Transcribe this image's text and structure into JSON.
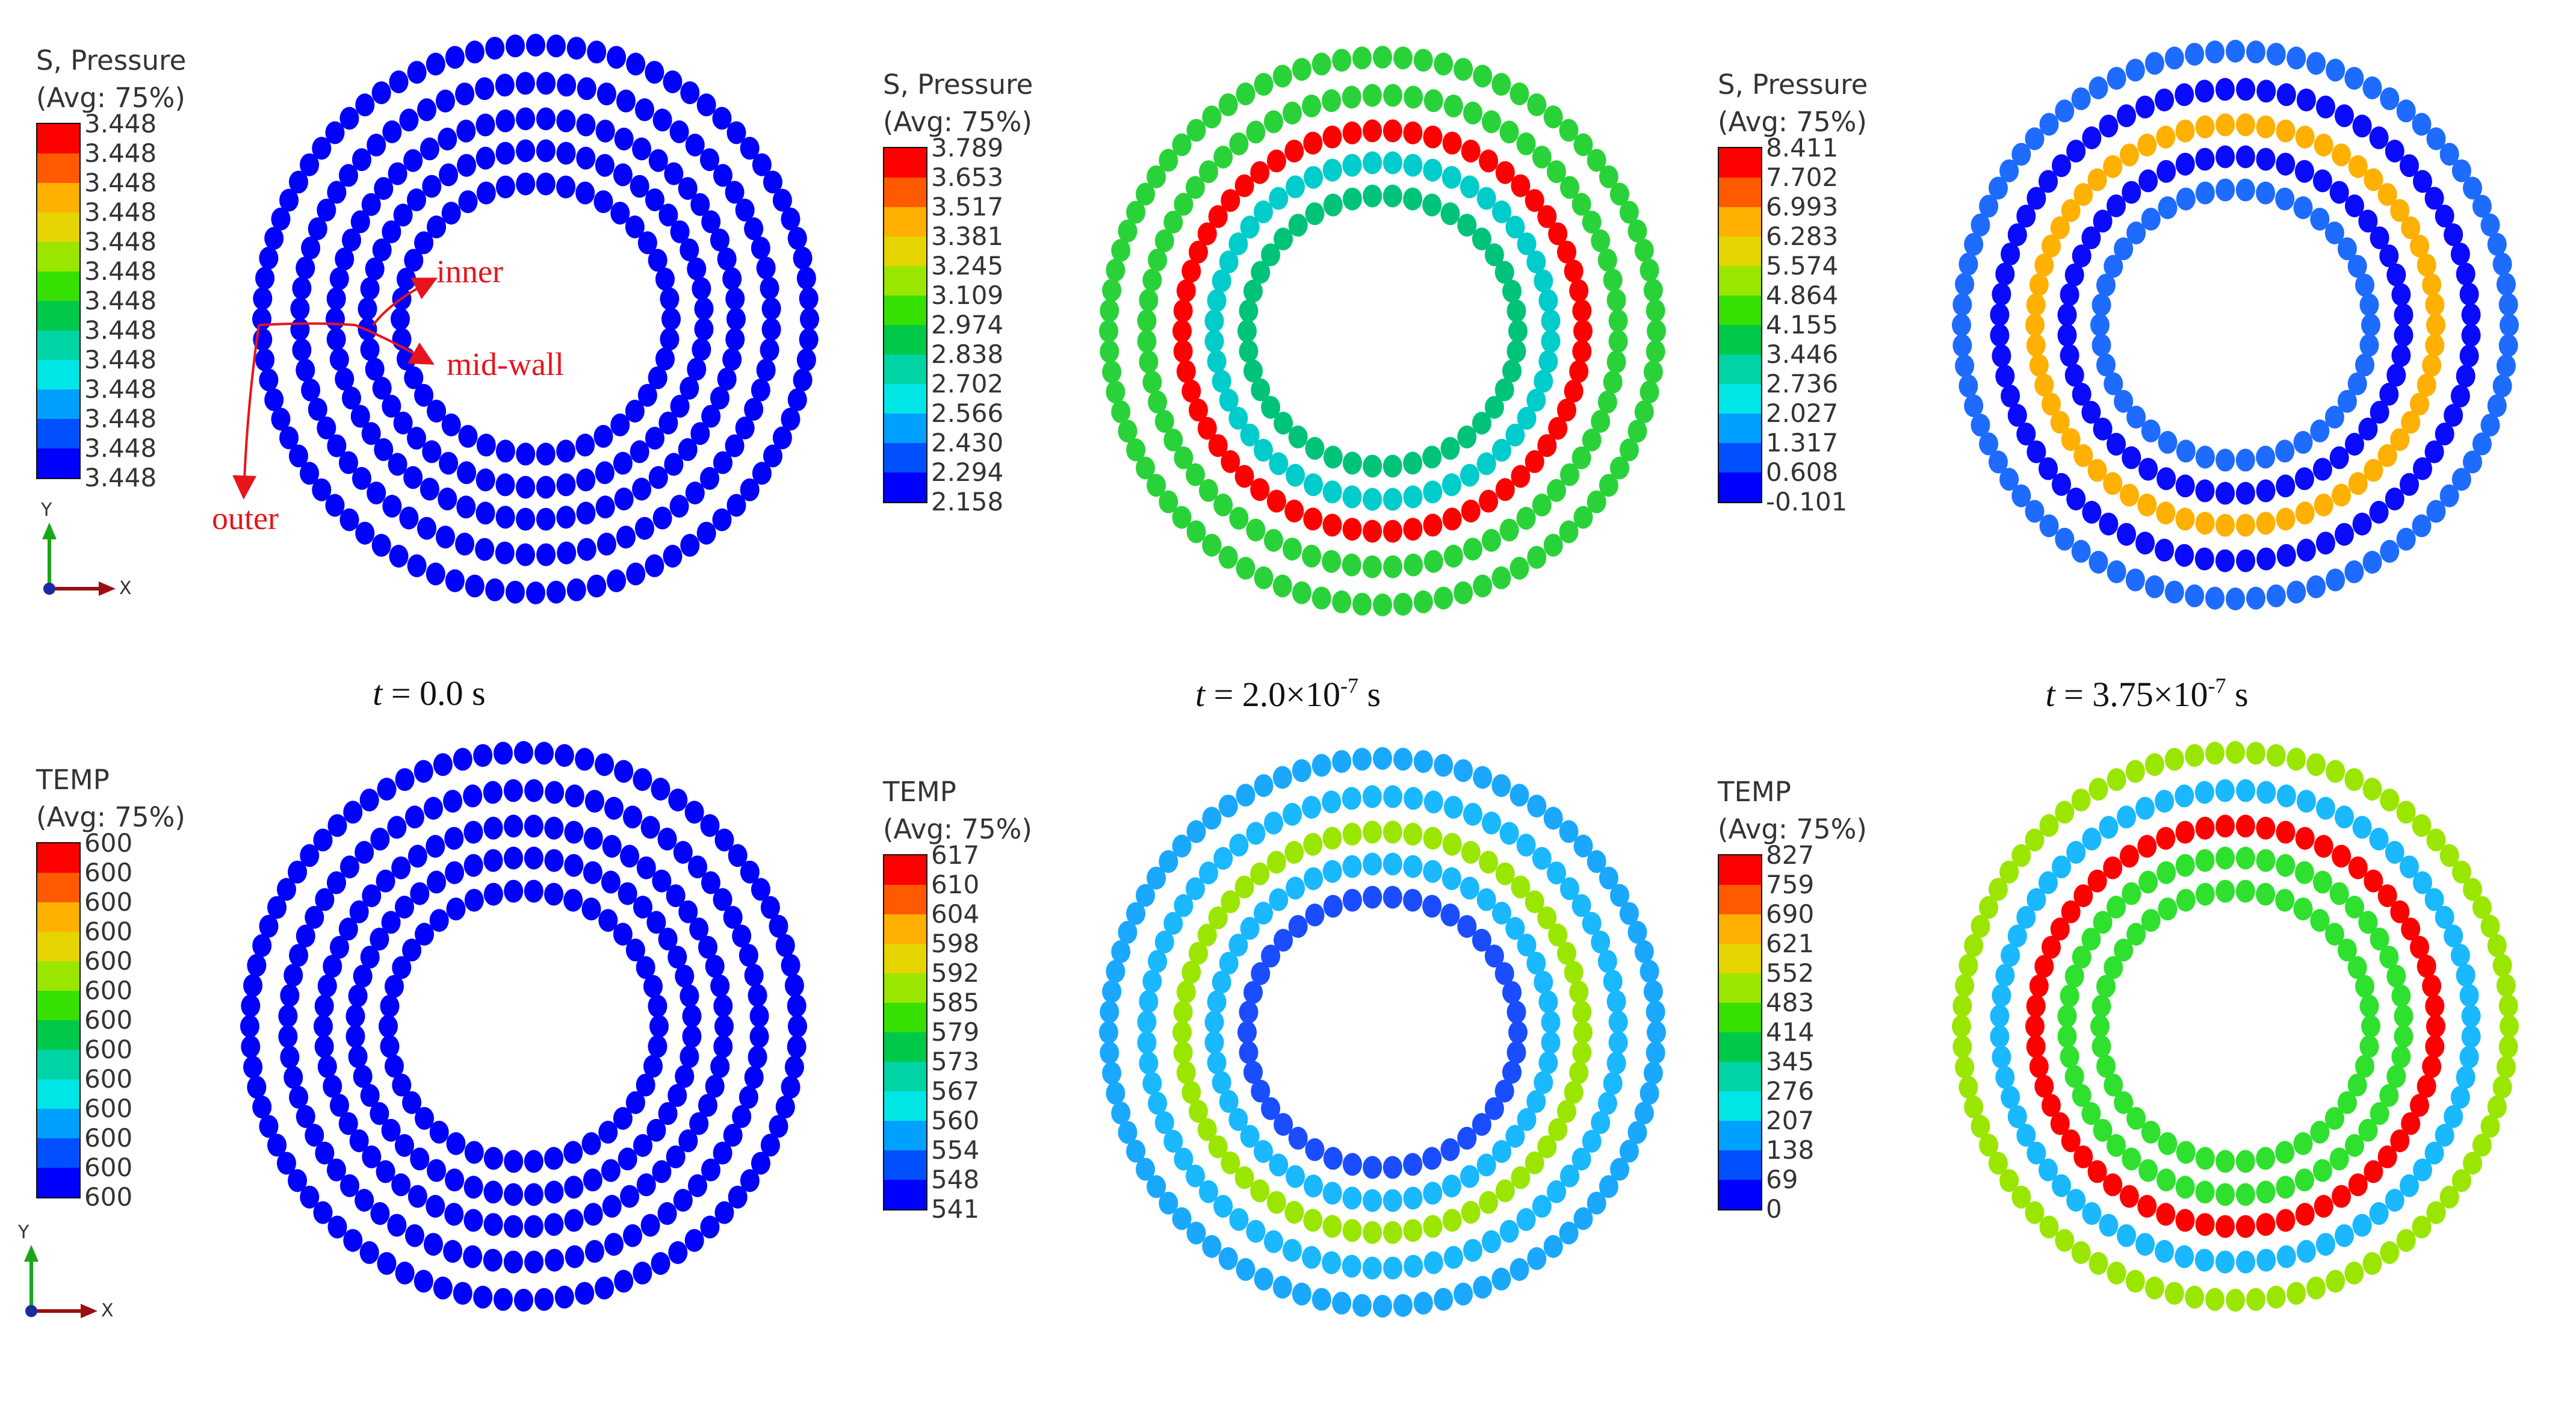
{
  "figure": {
    "annotations": {
      "inner": "inner",
      "mid_wall": "mid-wall",
      "outer": "outer"
    },
    "axis_triad": {
      "y": "Y",
      "x": "X"
    },
    "time_labels": [
      {
        "var": "t",
        "text": " = 0.0 s",
        "mantissa": "",
        "exponent": "",
        "unit": ""
      },
      {
        "var": "t",
        "text": " = 2.0×10",
        "mantissa": "",
        "exponent": "-7",
        "unit": " s"
      },
      {
        "var": "t",
        "text": " = 3.75×10",
        "mantissa": "",
        "exponent": "-7",
        "unit": " s"
      }
    ]
  },
  "colormap": [
    "#ff0000",
    "#ff5a00",
    "#ffb000",
    "#e6d400",
    "#9ae600",
    "#36e000",
    "#00c84a",
    "#00d4a4",
    "#00e6e6",
    "#00a0ff",
    "#0050ff",
    "#0000ff"
  ],
  "panels": [
    {
      "id": "pressure-t0",
      "legend": {
        "title1": "S, Pressure",
        "title2": "(Avg: 75%)",
        "ticks": [
          "3.448",
          "3.448",
          "3.448",
          "3.448",
          "3.448",
          "3.448",
          "3.448",
          "3.448",
          "3.448",
          "3.448",
          "3.448",
          "3.448",
          "3.448"
        ]
      },
      "ring_colors": [
        "#0000ff",
        "#0000ff",
        "#0000ff",
        "#0000ff",
        "#0000ff"
      ]
    },
    {
      "id": "pressure-t2",
      "legend": {
        "title1": "S, Pressure",
        "title2": "(Avg: 75%)",
        "ticks": [
          "3.789",
          "3.653",
          "3.517",
          "3.381",
          "3.245",
          "3.109",
          "2.974",
          "2.838",
          "2.702",
          "2.566",
          "2.430",
          "2.294",
          "2.158"
        ]
      },
      "ring_colors": [
        "#00c37a",
        "#00cccc",
        "#ff0000",
        "#2ad23a",
        "#2ad23a"
      ]
    },
    {
      "id": "pressure-t375",
      "legend": {
        "title1": "S, Pressure",
        "title2": "(Avg: 75%)",
        "ticks": [
          "8.411",
          "7.702",
          "6.993",
          "6.283",
          "5.574",
          "4.864",
          "4.155",
          "3.446",
          "2.736",
          "2.027",
          "1.317",
          "0.608",
          "-0.101"
        ]
      },
      "ring_colors": [
        "#1e6bff",
        "#0a0aff",
        "#ffb000",
        "#0a0aff",
        "#1e6bff"
      ]
    },
    {
      "id": "temp-t0",
      "legend": {
        "title1": "TEMP",
        "title2": "(Avg: 75%)",
        "ticks": [
          "600",
          "600",
          "600",
          "600",
          "600",
          "600",
          "600",
          "600",
          "600",
          "600",
          "600",
          "600",
          "600"
        ]
      },
      "ring_colors": [
        "#0000ff",
        "#0000ff",
        "#0000ff",
        "#0000ff",
        "#0000ff"
      ]
    },
    {
      "id": "temp-t2",
      "legend": {
        "title1": "TEMP",
        "title2": "(Avg: 75%)",
        "ticks": [
          "617",
          "610",
          "604",
          "598",
          "592",
          "585",
          "579",
          "573",
          "567",
          "560",
          "554",
          "548",
          "541"
        ]
      },
      "ring_colors": [
        "#1a4dff",
        "#19b8ff",
        "#9ae600",
        "#19b8ff",
        "#1aa8ff"
      ]
    },
    {
      "id": "temp-t375",
      "legend": {
        "title1": "TEMP",
        "title2": "(Avg: 75%)",
        "ticks": [
          "827",
          "759",
          "690",
          "621",
          "552",
          "483",
          "414",
          "345",
          "276",
          "207",
          "138",
          "69",
          "0"
        ]
      },
      "ring_colors": [
        "#2fe02f",
        "#2fe02f",
        "#ff0000",
        "#19b8ff",
        "#9ae600"
      ]
    }
  ]
}
